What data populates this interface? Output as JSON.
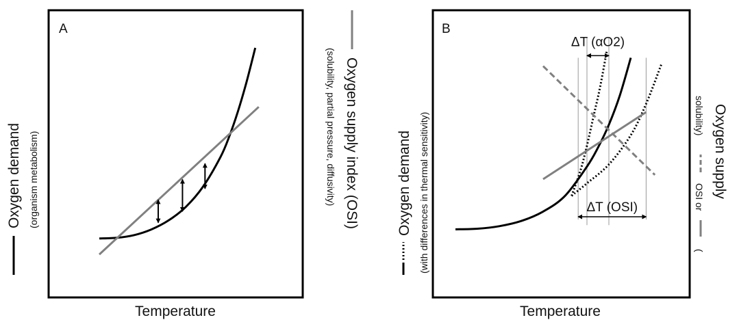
{
  "figure": {
    "colors": {
      "demand": "#000000",
      "supply": "#808080",
      "frame": "#000000",
      "guide": "#999999"
    },
    "left_axis": {
      "title": "Oxygen demand",
      "subtitle": "(organism metabolism)",
      "legend_line": "solid black"
    },
    "middle_axis": {
      "title": "Oxygen supply index (OSI)",
      "subtitle": "(solubility, partial pressure, diffusivity)",
      "legend_line": "solid gray"
    },
    "left_axis_b": {
      "title": "Oxygen demand",
      "subtitle": "(with differences in thermal sensitivity)",
      "legend_line": "solid + dotted black"
    },
    "right_axis": {
      "title": "Oxygen supply",
      "subtitle_prefix": "(",
      "subtitle_mid": "OSI or",
      "subtitle_suffix": "solubility)",
      "legend_lines": [
        "solid gray",
        "dashed gray"
      ]
    }
  },
  "chart_data": [
    {
      "type": "line",
      "panel_label": "A",
      "xlabel": "Temperature",
      "ylabel": "",
      "grid": false,
      "xlim": [
        0,
        10
      ],
      "ylim": [
        0,
        10
      ],
      "series": [
        {
          "role": "demand",
          "style": "solid",
          "color": "#000000",
          "x": [
            0.0,
            1.0,
            2.0,
            3.0,
            4.0,
            5.0,
            6.0,
            7.0,
            7.5,
            8.0,
            8.5,
            9.0
          ],
          "y": [
            1.3,
            1.33,
            1.45,
            1.7,
            2.1,
            2.7,
            3.6,
            4.9,
            5.8,
            6.9,
            8.2,
            9.7
          ]
        },
        {
          "role": "supply",
          "style": "solid",
          "color": "#808080",
          "x": [
            0.0,
            9.2
          ],
          "y": [
            0.6,
            7.1
          ]
        }
      ],
      "annotations": [
        {
          "kind": "double-arrow",
          "x": 3.4,
          "y_from": 2.0,
          "y_to": 3.0
        },
        {
          "kind": "double-arrow",
          "x": 4.8,
          "y_from": 2.5,
          "y_to": 3.9
        },
        {
          "kind": "double-arrow",
          "x": 6.1,
          "y_from": 3.5,
          "y_to": 4.6
        }
      ]
    },
    {
      "type": "line",
      "panel_label": "B",
      "xlabel": "Temperature",
      "ylabel": "",
      "grid": false,
      "xlim": [
        0,
        10
      ],
      "ylim": [
        0,
        10
      ],
      "series": [
        {
          "role": "demand",
          "style": "solid",
          "color": "#000000",
          "x": [
            0.0,
            1.0,
            2.0,
            3.0,
            4.0,
            5.0,
            6.0,
            6.5,
            7.0,
            7.5,
            8.0
          ],
          "y": [
            1.0,
            1.03,
            1.15,
            1.4,
            1.85,
            2.6,
            4.0,
            4.9,
            6.0,
            7.4,
            9.2
          ]
        },
        {
          "role": "demand",
          "style": "dotted",
          "color": "#000000",
          "x": [
            5.3,
            5.7,
            6.0,
            6.3,
            6.6,
            6.9
          ],
          "y": [
            2.6,
            3.8,
            5.0,
            6.4,
            7.8,
            9.5
          ]
        },
        {
          "role": "demand",
          "style": "dotted",
          "color": "#000000",
          "x": [
            5.3,
            6.0,
            7.0,
            8.0,
            8.7,
            9.4
          ],
          "y": [
            2.6,
            3.2,
            4.1,
            5.5,
            7.0,
            8.9
          ]
        },
        {
          "role": "supply",
          "style": "solid",
          "color": "#808080",
          "x": [
            4.0,
            8.7
          ],
          "y": [
            3.4,
            6.6
          ]
        },
        {
          "role": "supply",
          "style": "dashed",
          "color": "#808080",
          "x": [
            4.0,
            9.1
          ],
          "y": [
            8.8,
            3.6
          ]
        }
      ],
      "annotations": [
        {
          "kind": "span",
          "label": "ΔT (αO2)",
          "x_from": 6.0,
          "x_to": 7.0,
          "y": 9.3
        },
        {
          "kind": "span",
          "label": "ΔT (OSI)",
          "x_from": 5.6,
          "x_to": 8.7,
          "y": 1.6
        }
      ]
    }
  ]
}
